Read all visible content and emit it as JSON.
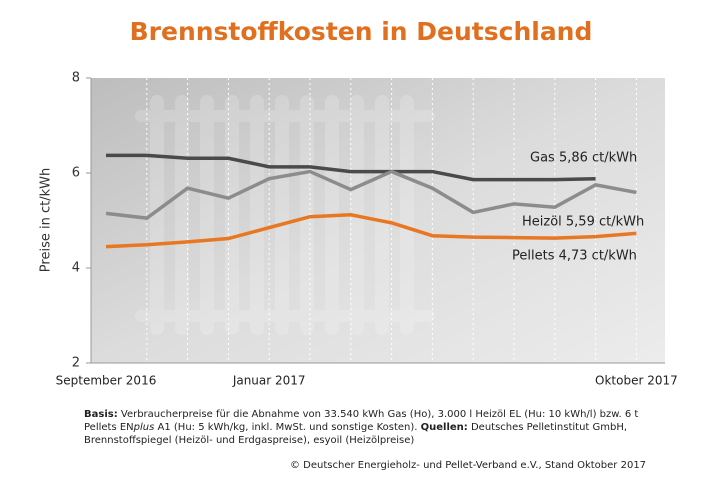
{
  "chart_data": {
    "type": "line",
    "title": "Brennstoffkosten in Deutschland",
    "y_label": "Preise in ct/kWh",
    "categories": [
      "September 2016",
      null,
      null,
      null,
      "Januar 2017",
      null,
      null,
      null,
      null,
      null,
      null,
      null,
      null,
      "Oktober 2017"
    ],
    "series": [
      {
        "name": "Gas 5,86 ct/kWh",
        "color": "#4a4a4a",
        "values": [
          6.37,
          6.37,
          6.31,
          6.31,
          6.13,
          6.13,
          6.03,
          6.03,
          6.03,
          5.86,
          5.86,
          5.86,
          5.88,
          null
        ]
      },
      {
        "name": "Heizöl 5,59 ct/kWh",
        "color": "#8c8c8c",
        "values": [
          5.15,
          5.05,
          5.68,
          5.47,
          5.88,
          6.03,
          5.65,
          6.03,
          5.68,
          5.17,
          5.35,
          5.28,
          5.75,
          5.59
        ]
      },
      {
        "name": "Pellets 4,73 ct/kWh",
        "color": "#e87722",
        "values": [
          4.45,
          4.49,
          4.55,
          4.62,
          4.85,
          5.08,
          5.12,
          4.95,
          4.68,
          4.65,
          4.64,
          4.63,
          4.66,
          4.73
        ]
      }
    ],
    "ylim": [
      2,
      8
    ],
    "yticks": [
      2,
      4,
      6,
      8
    ],
    "vertical_grid": true
  },
  "footnote": [
    {
      "text": "Basis:",
      "bold": true
    },
    {
      "text": " Verbraucherpreise für die Abnahme von 33.540 kWh Gas (Ho), 3.000 l Heizöl EL (Hu: 10 kWh/l) bzw. 6 t Pellets EN"
    },
    {
      "text": "plus",
      "italic": true
    },
    {
      "text": " A1 (Hu: 5 kWh/kg, inkl. MwSt. und sonstige Kosten). "
    },
    {
      "text": "Quellen:",
      "bold": true
    },
    {
      "text": " Deutsches Pelletinstitut GmbH, Brennstoffspiegel (Heizöl- und Erdgaspreise), esyoil (Heizölpreise)"
    }
  ],
  "copyright": "© Deutscher Energieholz- und Pellet-Verband e.V., Stand Oktober 2017"
}
